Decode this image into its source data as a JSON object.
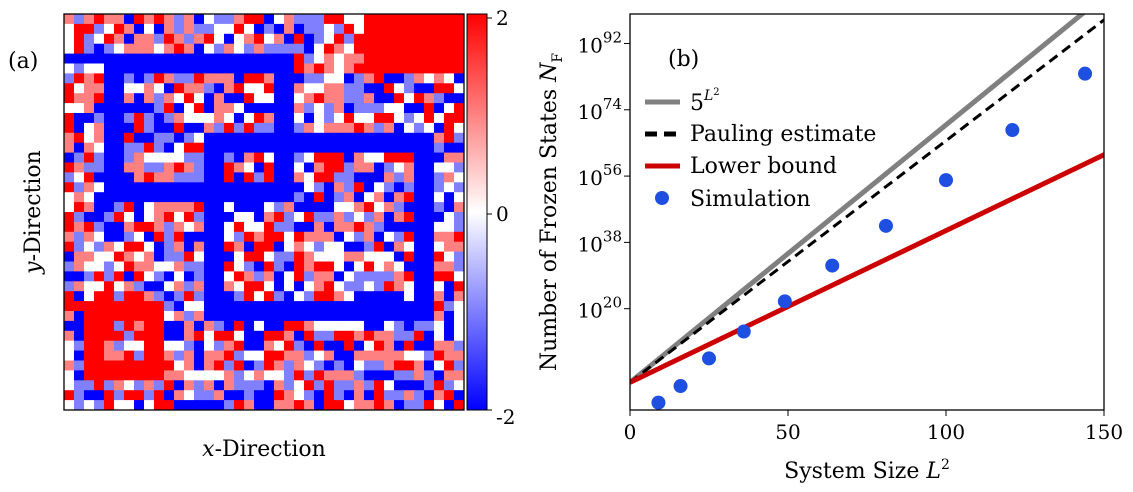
{
  "chart_data": [
    {
      "type": "heatmap",
      "panel_label": "(a)",
      "xlabel": "x-Direction",
      "ylabel": "y-Direction",
      "grid_size": [
        40,
        40
      ],
      "colorbar": {
        "range": [
          -2,
          2
        ],
        "ticks": [
          "2",
          "0",
          "-2"
        ],
        "colors": {
          "negative": "#0000ff",
          "zero": "#ffffff",
          "positive": "#ff0000"
        }
      },
      "frozen_regions": [
        {
          "value": -2,
          "shape": "ring",
          "cells": [
            4,
            4,
            23,
            19
          ],
          "thickness": 2
        },
        {
          "value": -2,
          "shape": "ring",
          "cells": [
            14,
            12,
            37,
            31
          ],
          "thickness": 2
        },
        {
          "value": 2,
          "shape": "ring",
          "cells": [
            2,
            29,
            10,
            37
          ],
          "thickness": 2
        },
        {
          "value": 2,
          "shape": "block",
          "cells": [
            30,
            0,
            40,
            6
          ]
        }
      ]
    },
    {
      "type": "line",
      "panel_label": "(b)",
      "xlabel": "System Size L",
      "xlabel_sup": "2",
      "ylabel": "Number of Frozen States N",
      "ylabel_sub": "F",
      "xlim": [
        0,
        150
      ],
      "ylim_log10": [
        -7.5,
        100
      ],
      "x_ticks": [
        "0",
        "50",
        "100",
        "150"
      ],
      "y_ticks": [
        {
          "base": "10",
          "exp": "20",
          "value": 20
        },
        {
          "base": "10",
          "exp": "38",
          "value": 38
        },
        {
          "base": "10",
          "exp": "56",
          "value": 56
        },
        {
          "base": "10",
          "exp": "74",
          "value": 74
        },
        {
          "base": "10",
          "exp": "92",
          "value": 92
        }
      ],
      "legend_position": "top-left",
      "series": [
        {
          "name": "5",
          "name_sup": "L2",
          "kind": "line",
          "color": "#808080",
          "log10_per_unit": 0.699
        },
        {
          "name": "Pauling estimate",
          "kind": "dashed",
          "color": "#000000",
          "log10_per_unit": 0.656
        },
        {
          "name": "Lower bound",
          "kind": "line",
          "color": "#cc0000",
          "log10_per_unit": 0.412
        },
        {
          "name": "Simulation",
          "kind": "scatter",
          "color": "#1f4fe0",
          "x": [
            9,
            16,
            25,
            36,
            49,
            64,
            81,
            100,
            121,
            144
          ],
          "y_log10": [
            -5.5,
            -1,
            6.5,
            13.8,
            22,
            31.7,
            42.5,
            54.9,
            68.5,
            83.8
          ]
        }
      ]
    }
  ]
}
